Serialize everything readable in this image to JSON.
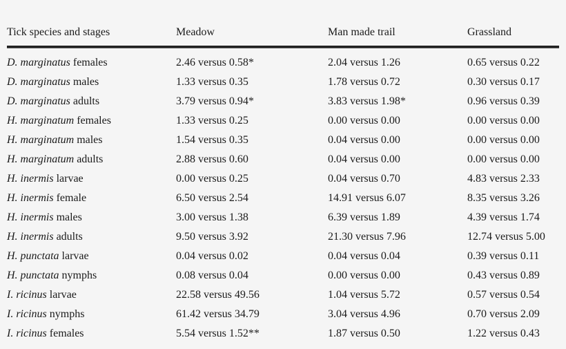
{
  "table": {
    "headers": [
      "Tick species and stages",
      "Meadow",
      "Man made trail",
      "Grassland"
    ],
    "rows": [
      {
        "species": "D. marginatus",
        "stage": "females",
        "meadow": "2.46 versus 0.58*",
        "trail": "2.04 versus 1.26",
        "grassland": "0.65 versus 0.22"
      },
      {
        "species": "D. marginatus",
        "stage": "males",
        "meadow": "1.33 versus 0.35",
        "trail": "1.78 versus 0.72",
        "grassland": "0.30 versus 0.17"
      },
      {
        "species": "D. marginatus",
        "stage": "adults",
        "meadow": "3.79 versus 0.94*",
        "trail": "3.83 versus 1.98*",
        "grassland": "0.96 versus 0.39"
      },
      {
        "species": "H. marginatum",
        "stage": "females",
        "meadow": "1.33 versus 0.25",
        "trail": "0.00 versus 0.00",
        "grassland": "0.00 versus 0.00"
      },
      {
        "species": "H. marginatum",
        "stage": "males",
        "meadow": "1.54 versus 0.35",
        "trail": "0.04 versus 0.00",
        "grassland": "0.00 versus 0.00"
      },
      {
        "species": "H. marginatum",
        "stage": "adults",
        "meadow": "2.88 versus 0.60",
        "trail": "0.04 versus 0.00",
        "grassland": "0.00 versus 0.00"
      },
      {
        "species": "H. inermis",
        "stage": "larvae",
        "meadow": "0.00 versus 0.25",
        "trail": "0.04 versus 0.70",
        "grassland": "4.83 versus 2.33"
      },
      {
        "species": "H. inermis",
        "stage": "female",
        "meadow": "6.50 versus 2.54",
        "trail": "14.91 versus 6.07",
        "grassland": "8.35 versus 3.26"
      },
      {
        "species": "H. inermis",
        "stage": "males",
        "meadow": "3.00 versus 1.38",
        "trail": "6.39 versus 1.89",
        "grassland": "4.39 versus 1.74"
      },
      {
        "species": "H. inermis",
        "stage": "adults",
        "meadow": "9.50 versus 3.92",
        "trail": "21.30 versus 7.96",
        "grassland": "12.74 versus 5.00"
      },
      {
        "species": "H. punctata",
        "stage": "larvae",
        "meadow": "0.04 versus 0.02",
        "trail": "0.04 versus 0.04",
        "grassland": "0.39 versus 0.11"
      },
      {
        "species": "H. punctata",
        "stage": "nymphs",
        "meadow": "0.08 versus 0.04",
        "trail": "0.00 versus 0.00",
        "grassland": "0.43 versus 0.89"
      },
      {
        "species": "I. ricinus",
        "stage": "larvae",
        "meadow": "22.58 versus 49.56",
        "trail": "1.04 versus 5.72",
        "grassland": "0.57 versus 0.54"
      },
      {
        "species": "I. ricinus",
        "stage": "nymphs",
        "meadow": "61.42 versus 34.79",
        "trail": "3.04 versus 4.96",
        "grassland": "0.70 versus 2.09"
      },
      {
        "species": "I. ricinus",
        "stage": "females",
        "meadow": "5.54 versus 1.52**",
        "trail": "1.87 versus 0.50",
        "grassland": "1.22 versus 0.43"
      }
    ]
  }
}
